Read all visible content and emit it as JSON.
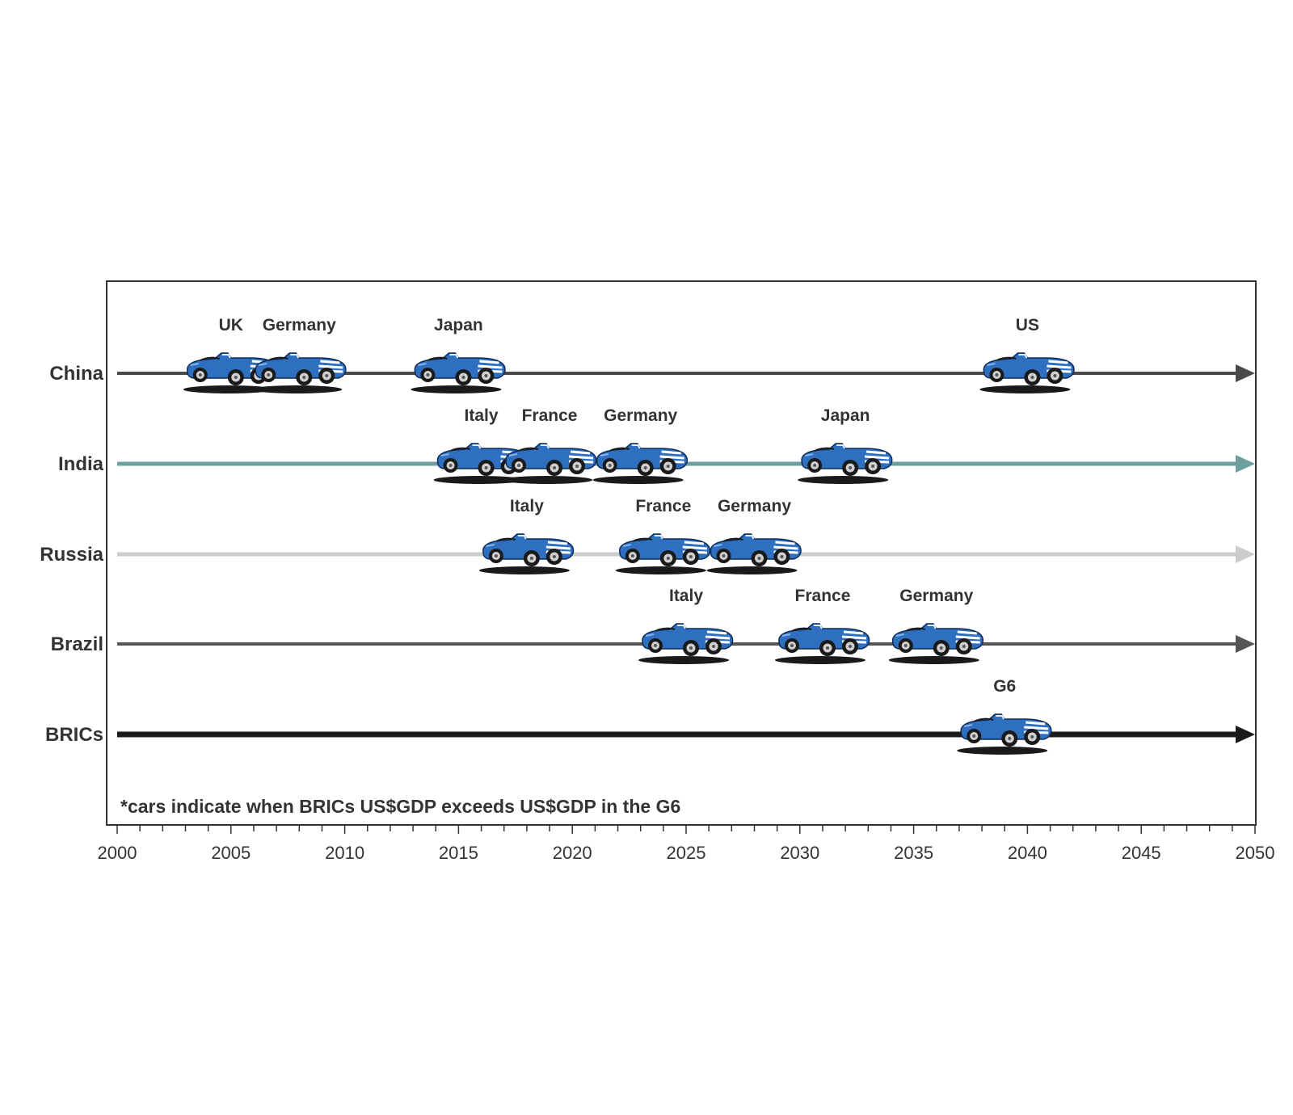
{
  "chart_data": {
    "type": "timeline",
    "x_axis": {
      "range": [
        2000,
        2050
      ],
      "ticks": [
        2000,
        2005,
        2010,
        2015,
        2020,
        2025,
        2030,
        2035,
        2040,
        2045,
        2050
      ],
      "tick_labels": [
        "2000",
        "2005",
        "2010",
        "2015",
        "2020",
        "2025",
        "2030",
        "2035",
        "2040",
        "2045",
        "2050"
      ],
      "minor_tick_step": 1
    },
    "rows": [
      {
        "name": "China",
        "color": "#4a4a4a",
        "events": [
          {
            "label": "UK",
            "year": 2005
          },
          {
            "label": "Germany",
            "year": 2008
          },
          {
            "label": "Japan",
            "year": 2015
          },
          {
            "label": "US",
            "year": 2040
          }
        ]
      },
      {
        "name": "India",
        "color": "#6d9fa0",
        "events": [
          {
            "label": "Italy",
            "year": 2016
          },
          {
            "label": "France",
            "year": 2019
          },
          {
            "label": "Germany",
            "year": 2023
          },
          {
            "label": "Japan",
            "year": 2032
          }
        ]
      },
      {
        "name": "Russia",
        "color": "#cccccc",
        "events": [
          {
            "label": "Italy",
            "year": 2018
          },
          {
            "label": "France",
            "year": 2024
          },
          {
            "label": "Germany",
            "year": 2028
          }
        ]
      },
      {
        "name": "Brazil",
        "color": "#555555",
        "events": [
          {
            "label": "Italy",
            "year": 2025
          },
          {
            "label": "France",
            "year": 2031
          },
          {
            "label": "Germany",
            "year": 2036
          }
        ]
      },
      {
        "name": "BRICs",
        "color": "#1a1a1a",
        "events": [
          {
            "label": "G6",
            "year": 2039
          }
        ]
      }
    ],
    "footnote": "*cars indicate when BRICs US$GDP exceeds US$GDP in the G6",
    "marker_icon": "car-icon",
    "car_color": "#2e6fc0"
  }
}
